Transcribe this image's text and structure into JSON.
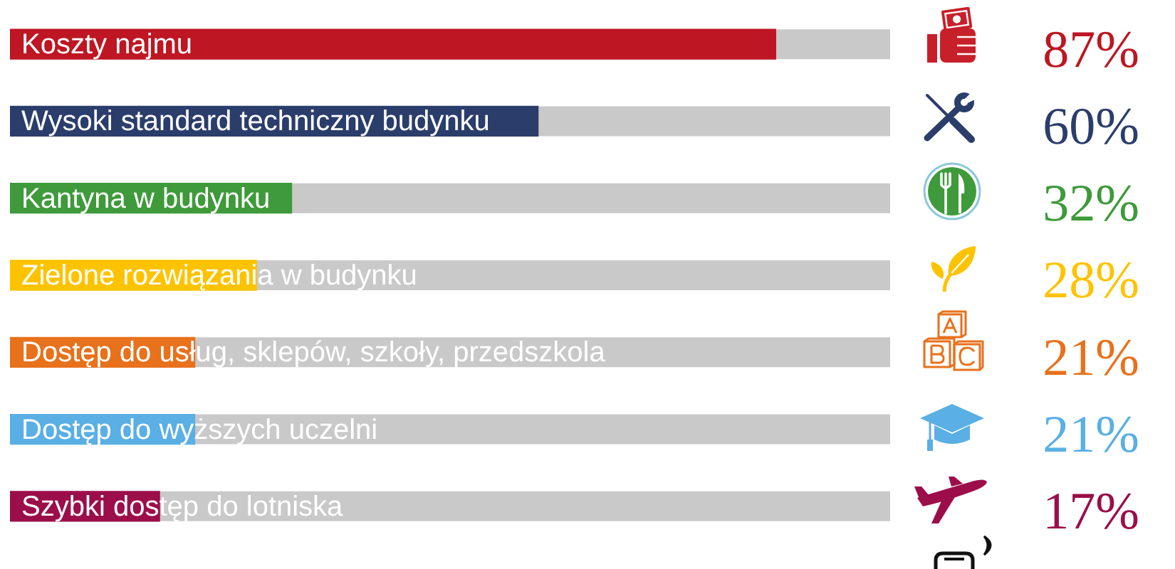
{
  "chart_data": {
    "type": "bar",
    "orientation": "horizontal",
    "categories": [
      "Koszty najmu",
      "Wysoki standard techniczny budynku",
      "Kantyna w budynku",
      "Zielone rozwiązania w budynku",
      "Dostęp do usług, sklepów, szkoły, przedszkola",
      "Dostęp do wyższych uczelni",
      "Szybki dostęp do lotniska"
    ],
    "values": [
      87,
      60,
      32,
      28,
      21,
      21,
      17
    ],
    "colors": [
      "#be1622",
      "#2b3d6b",
      "#3e9a3a",
      "#fdc300",
      "#e8711c",
      "#5aafe4",
      "#9b0e4a"
    ],
    "value_labels": [
      "87%",
      "60%",
      "32%",
      "28%",
      "21%",
      "21%",
      "17%"
    ],
    "xlim": [
      0,
      100
    ],
    "tick_labels": "y"
  }
}
